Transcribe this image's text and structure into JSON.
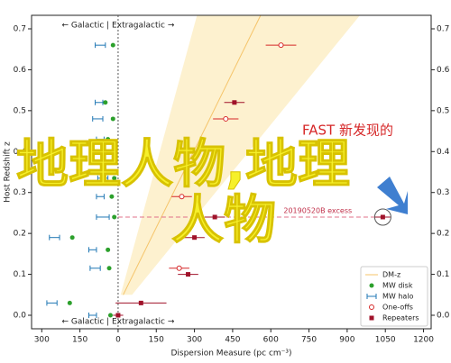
{
  "chart_data": {
    "type": "scatter",
    "xlabel": "Dispersion Measure (pc cm⁻³)",
    "ylabel": "Host Redshift z",
    "xlim": [
      -340,
      1230
    ],
    "ylim": [
      -0.033,
      0.733
    ],
    "xticks": [
      {
        "value": -300,
        "label": "300"
      },
      {
        "value": -150,
        "label": "150"
      },
      0,
      150,
      300,
      450,
      600,
      750,
      900,
      1050,
      1200
    ],
    "yticks": [
      {
        "value": 0,
        "label": "0.0"
      },
      0.1,
      0.2,
      0.3,
      0.4,
      0.5,
      0.6,
      0.7
    ],
    "annotation_top": "← Galactic | Extragalactic →",
    "annotation_bottom": "← Galactic | Extragalactic →",
    "excess_label": "20190520B excess",
    "band": {
      "name": "DM-z",
      "color": "#f5c46a",
      "y": [
        0.05,
        0.733
      ],
      "center": [
        20,
        560
      ],
      "low": [
        10,
        310
      ],
      "high": [
        55,
        950
      ]
    },
    "series": [
      {
        "name": "MW disk",
        "color": "#2ca02c",
        "marker": "dot",
        "x": [
          -20,
          -50,
          -20,
          -40,
          -15,
          -25,
          -15,
          -180,
          -40,
          -35,
          -190,
          -30
        ],
        "y": [
          0.66,
          0.52,
          0.48,
          0.43,
          0.335,
          0.29,
          0.24,
          0.19,
          0.16,
          0.115,
          0.03,
          0.0
        ]
      },
      {
        "name": "MW halo",
        "color": "#1f77b4",
        "marker": "bar",
        "x": [
          -70,
          -75,
          -80,
          -70,
          -60,
          -70,
          -60,
          -250,
          -100,
          -90,
          -260,
          -100
        ],
        "y": [
          0.66,
          0.52,
          0.48,
          0.43,
          0.335,
          0.29,
          0.24,
          0.19,
          0.16,
          0.115,
          0.03,
          0.0
        ],
        "xerr": [
          20,
          15,
          20,
          15,
          20,
          15,
          25,
          20,
          15,
          20,
          20,
          15
        ]
      },
      {
        "name": "One-offs",
        "color": "#d62728",
        "marker": "open",
        "x": [
          640,
          423,
          250,
          240
        ],
        "y": [
          0.66,
          0.48,
          0.29,
          0.115
        ],
        "xerr": [
          60,
          50,
          40,
          40
        ]
      },
      {
        "name": "Repeaters",
        "color": "#a0122a",
        "marker": "square",
        "x": [
          457,
          380,
          1040,
          300,
          275,
          90,
          0
        ],
        "y": [
          0.52,
          0.24,
          0.24,
          0.19,
          0.1,
          0.03,
          0.0
        ],
        "xerr": [
          40,
          40,
          30,
          40,
          40,
          100,
          20
        ]
      }
    ],
    "overlay": {
      "red_text": "FAST 新发现的",
      "big_1": "地理人物,地理",
      "big_2": "人物"
    }
  }
}
